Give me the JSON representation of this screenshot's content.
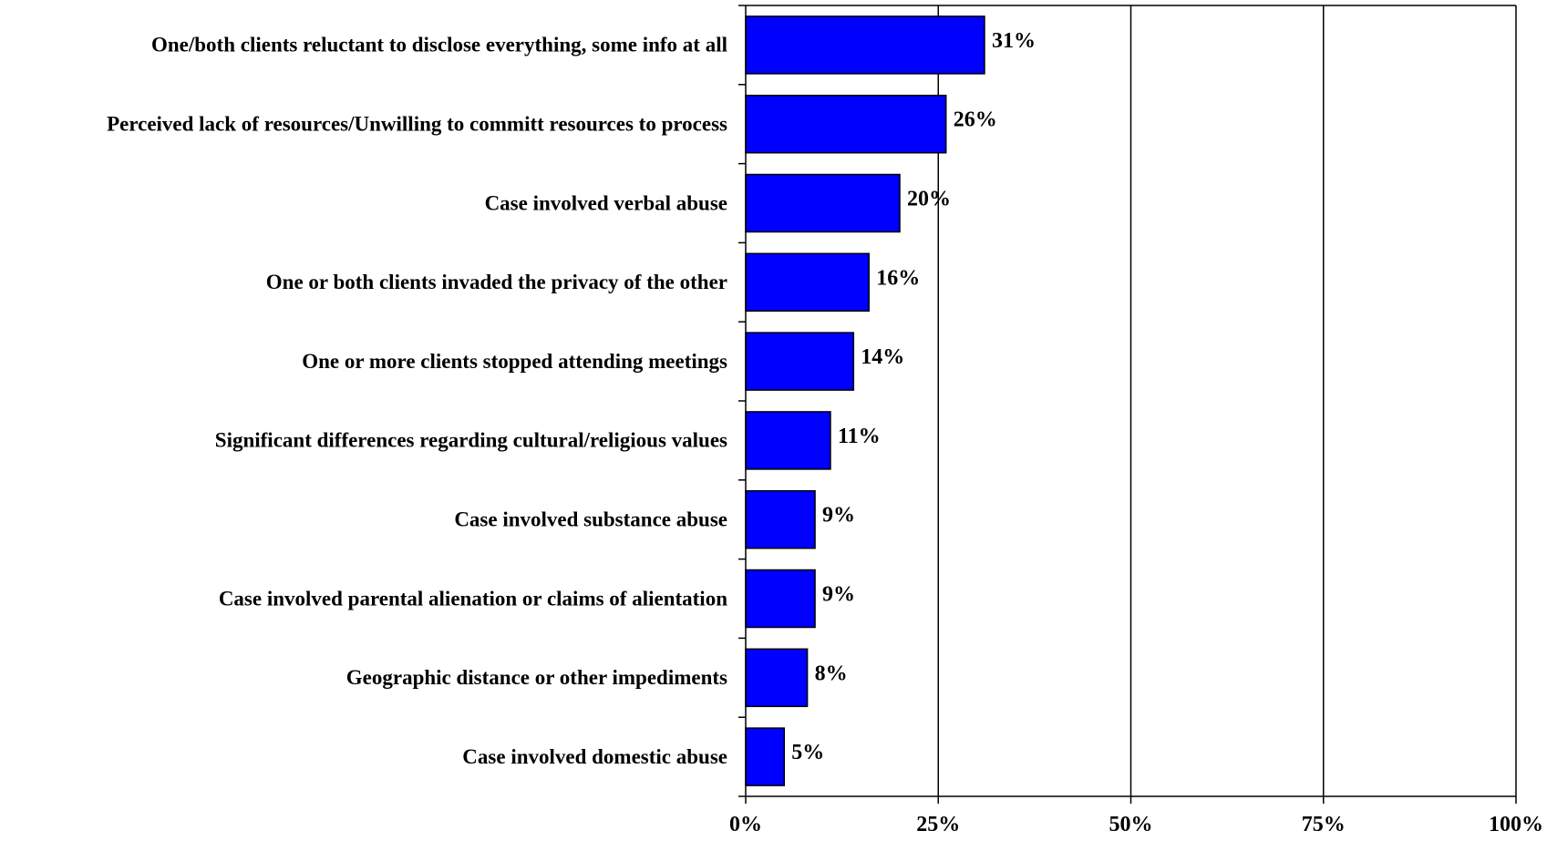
{
  "chart_data": {
    "type": "bar",
    "orientation": "horizontal",
    "categories": [
      "One/both clients reluctant to disclose everything, some info at all",
      "Perceived lack of resources/Unwilling to committ resources to process",
      "Case involved verbal abuse",
      "One or both clients invaded the privacy of the other",
      "One or more clients stopped attending meetings",
      "Significant differences regarding cultural/religious values",
      "Case involved substance abuse",
      "Case involved parental alienation or claims of alientation",
      "Geographic distance or other impediments",
      "Case involved domestic abuse"
    ],
    "values": [
      31,
      26,
      20,
      16,
      14,
      11,
      9,
      9,
      8,
      5
    ],
    "data_labels": [
      "31%",
      "26%",
      "20%",
      "16%",
      "14%",
      "11%",
      "9%",
      "9%",
      "8%",
      "5%"
    ],
    "x_ticks": [
      0,
      25,
      50,
      75,
      100
    ],
    "x_tick_labels": [
      "0%",
      "25%",
      "50%",
      "75%",
      "100%"
    ],
    "xlim": [
      0,
      100
    ],
    "grid": "vertical",
    "legend": "none",
    "bar_color": "#0000FF",
    "bar_edge_color": "#000000",
    "title": "",
    "xlabel": "",
    "ylabel": ""
  }
}
